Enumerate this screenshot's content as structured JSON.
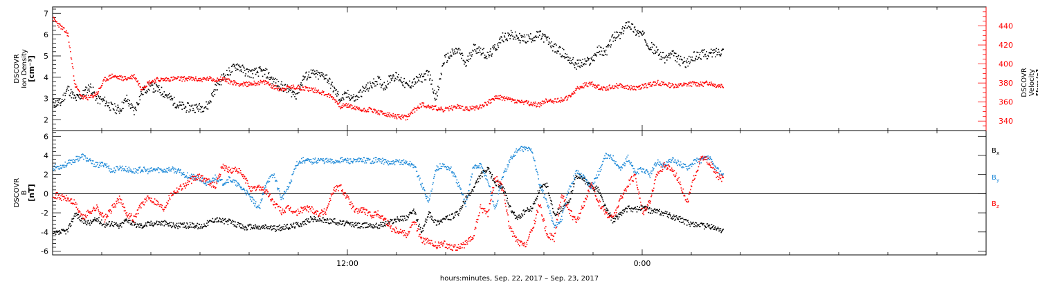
{
  "chart_data": [
    {
      "type": "scatter",
      "panel": "top",
      "ylabel_left": [
        "DSCOVR",
        "Ion Density",
        "[cm⁻³]"
      ],
      "ylabel_right": [
        "DSCOVR",
        "Velocity",
        "[km/s]"
      ],
      "left_axis": {
        "ylim": [
          1.5,
          7.3
        ],
        "ticks": [
          "2",
          "3",
          "4",
          "5",
          "6",
          "7"
        ],
        "tick_values": [
          2,
          3,
          4,
          5,
          6,
          7
        ]
      },
      "right_axis": {
        "ylim": [
          330,
          460
        ],
        "ticks": [
          "340",
          "360",
          "380",
          "400",
          "420",
          "440"
        ],
        "tick_values": [
          340,
          360,
          380,
          400,
          420,
          440
        ]
      },
      "series": [
        {
          "axis": "left",
          "color": "#000000",
          "x": [
            0.0,
            0.3,
            0.6,
            0.9,
            1.2,
            1.5,
            1.8,
            2.1,
            2.4,
            2.7,
            3.0,
            3.3,
            3.6,
            3.9,
            4.2,
            4.5,
            4.8,
            5.1,
            5.4,
            5.7,
            6.0,
            6.3,
            6.6,
            6.9,
            7.2,
            7.5,
            7.8,
            8.1,
            8.4,
            8.7,
            9.0,
            9.3,
            9.6,
            9.9,
            10.2,
            10.5,
            10.8,
            11.1,
            11.4,
            11.7,
            12.0,
            12.3,
            12.6,
            12.9,
            13.2,
            13.5,
            13.8,
            14.1,
            14.4,
            14.7,
            15.0,
            15.3,
            15.6,
            15.9,
            16.2,
            16.5,
            16.8,
            17.1,
            17.4,
            17.7,
            18.0,
            18.3,
            18.6,
            18.9,
            19.2,
            19.5,
            19.8,
            20.1,
            20.4,
            20.7,
            21.0,
            21.3,
            21.6,
            21.9,
            22.2,
            22.5,
            22.8,
            23.1,
            23.4,
            23.7,
            24.0,
            24.3,
            24.6,
            24.9,
            25.2,
            25.5,
            25.8,
            26.1,
            26.4,
            26.7,
            27.0,
            27.3
          ],
          "y": [
            2.8,
            2.8,
            3.5,
            3.0,
            3.2,
            3.6,
            3.0,
            2.9,
            2.6,
            2.5,
            3.0,
            2.4,
            3.3,
            3.6,
            3.5,
            3.3,
            3.0,
            2.7,
            2.6,
            2.6,
            2.6,
            2.7,
            3.5,
            4.0,
            4.3,
            4.6,
            4.3,
            4.2,
            4.3,
            4.2,
            3.8,
            3.6,
            3.4,
            3.2,
            4.0,
            4.2,
            4.1,
            4.1,
            3.5,
            3.0,
            3.2,
            3.0,
            3.4,
            3.6,
            3.9,
            3.6,
            4.1,
            4.0,
            3.6,
            3.8,
            4.0,
            4.2,
            3.0,
            4.8,
            5.1,
            5.3,
            4.6,
            5.4,
            5.3,
            5.0,
            5.4,
            5.9,
            6.0,
            5.9,
            5.8,
            5.9,
            6.0,
            5.8,
            5.4,
            5.2,
            4.9,
            4.6,
            4.7,
            4.8,
            5.3,
            5.2,
            5.9,
            6.0,
            6.6,
            6.2,
            6.0,
            5.5,
            5.2,
            4.9,
            5.1,
            4.8,
            4.7,
            5.0,
            5.1,
            5.1,
            5.2,
            5.3
          ]
        },
        {
          "axis": "right",
          "color": "#ff0000",
          "x": [
            0.0,
            0.3,
            0.6,
            0.9,
            1.2,
            1.5,
            1.8,
            2.1,
            2.4,
            2.7,
            3.0,
            3.3,
            3.6,
            3.9,
            4.2,
            4.5,
            4.8,
            5.1,
            5.4,
            5.7,
            6.0,
            6.3,
            6.6,
            6.9,
            7.2,
            7.5,
            7.8,
            8.1,
            8.4,
            8.7,
            9.0,
            9.3,
            9.6,
            9.9,
            10.2,
            10.5,
            10.8,
            11.1,
            11.4,
            11.7,
            12.0,
            12.3,
            12.6,
            12.9,
            13.2,
            13.5,
            13.8,
            14.1,
            14.4,
            14.7,
            15.0,
            15.3,
            15.6,
            15.9,
            16.2,
            16.5,
            16.8,
            17.1,
            17.4,
            17.7,
            18.0,
            18.3,
            18.6,
            18.9,
            19.2,
            19.5,
            19.8,
            20.1,
            20.4,
            20.7,
            21.0,
            21.3,
            21.6,
            21.9,
            22.2,
            22.5,
            22.8,
            23.1,
            23.4,
            23.7,
            24.0,
            24.3,
            24.6,
            24.9,
            25.2,
            25.5,
            25.8,
            26.1,
            26.4,
            26.7,
            27.0,
            27.3
          ],
          "y": [
            448,
            440,
            432,
            378,
            365,
            365,
            370,
            384,
            388,
            386,
            385,
            388,
            375,
            381,
            384,
            384,
            385,
            385,
            385,
            385,
            384,
            385,
            384,
            385,
            382,
            380,
            379,
            380,
            381,
            381,
            376,
            374,
            376,
            376,
            375,
            374,
            372,
            369,
            365,
            356,
            357,
            354,
            352,
            353,
            350,
            348,
            346,
            345,
            344,
            352,
            358,
            356,
            354,
            352,
            354,
            356,
            353,
            354,
            356,
            360,
            365,
            365,
            363,
            361,
            360,
            358,
            358,
            362,
            362,
            363,
            365,
            374,
            378,
            380,
            376,
            375,
            377,
            378,
            376,
            375,
            377,
            379,
            381,
            379,
            378,
            378,
            379,
            380,
            379,
            381,
            378,
            378
          ]
        }
      ]
    },
    {
      "type": "scatter",
      "panel": "bottom",
      "ylabel_left": [
        "DSCOVR",
        "B",
        "[nT]"
      ],
      "left_axis": {
        "ylim": [
          -6.4,
          6.6
        ],
        "ticks": [
          "-6",
          "-4",
          "-2",
          "0",
          "2",
          "4",
          "6"
        ],
        "tick_values": [
          -6,
          -4,
          -2,
          0,
          2,
          4,
          6
        ]
      },
      "zero_line": true,
      "series": [
        {
          "name": "Bx",
          "color": "#000000",
          "x": [
            0.0,
            0.3,
            0.6,
            0.9,
            1.2,
            1.5,
            1.8,
            2.1,
            2.4,
            2.7,
            3.0,
            3.3,
            3.6,
            3.9,
            4.2,
            4.5,
            4.8,
            5.1,
            5.4,
            5.7,
            6.0,
            6.3,
            6.6,
            6.9,
            7.2,
            7.5,
            7.8,
            8.1,
            8.4,
            8.7,
            9.0,
            9.3,
            9.6,
            9.9,
            10.2,
            10.5,
            10.8,
            11.1,
            11.4,
            11.7,
            12.0,
            12.3,
            12.6,
            12.9,
            13.2,
            13.5,
            13.8,
            14.1,
            14.4,
            14.7,
            15.0,
            15.3,
            15.6,
            15.9,
            16.2,
            16.5,
            16.8,
            17.1,
            17.4,
            17.7,
            18.0,
            18.3,
            18.6,
            18.9,
            19.2,
            19.5,
            19.8,
            20.1,
            20.4,
            20.7,
            21.0,
            21.3,
            21.6,
            21.9,
            22.2,
            22.5,
            22.8,
            23.1,
            23.4,
            23.7,
            24.0,
            24.3,
            24.6,
            24.9,
            25.2,
            25.5,
            25.8,
            26.1,
            26.4,
            26.7,
            27.0,
            27.3
          ],
          "y": [
            -4.2,
            -4.0,
            -3.8,
            -2.0,
            -2.8,
            -3.0,
            -2.6,
            -3.2,
            -3.0,
            -3.4,
            -2.6,
            -3.2,
            -3.3,
            -3.1,
            -3.0,
            -3.0,
            -3.2,
            -3.3,
            -3.3,
            -3.2,
            -3.4,
            -3.0,
            -2.6,
            -2.8,
            -2.9,
            -3.2,
            -3.5,
            -3.4,
            -3.5,
            -3.4,
            -3.6,
            -3.5,
            -3.4,
            -3.2,
            -3.0,
            -2.6,
            -2.6,
            -2.8,
            -2.8,
            -3.0,
            -3.1,
            -3.2,
            -3.3,
            -3.2,
            -3.3,
            -3.1,
            -2.8,
            -2.6,
            -2.4,
            -1.8,
            -4.0,
            -2.0,
            -3.0,
            -2.6,
            -2.4,
            -2.0,
            -0.5,
            0.5,
            2.0,
            2.6,
            1.2,
            0.8,
            -1.5,
            -2.6,
            -1.8,
            -1.5,
            0.5,
            1.0,
            -2.0,
            -1.6,
            -0.8,
            2.0,
            1.5,
            0.8,
            0.5,
            -1.5,
            -2.8,
            -2.0,
            -1.5,
            -1.6,
            -1.4,
            -1.7,
            -1.8,
            -2.0,
            -2.4,
            -2.6,
            -3.0,
            -3.1,
            -3.3,
            -3.4,
            -3.6,
            -3.8
          ]
        },
        {
          "name": "By",
          "color": "#1f8ad8",
          "x": [
            0.0,
            0.3,
            0.6,
            0.9,
            1.2,
            1.5,
            1.8,
            2.1,
            2.4,
            2.7,
            3.0,
            3.3,
            3.6,
            3.9,
            4.2,
            4.5,
            4.8,
            5.1,
            5.4,
            5.7,
            6.0,
            6.3,
            6.6,
            6.9,
            7.2,
            7.5,
            7.8,
            8.1,
            8.4,
            8.7,
            9.0,
            9.3,
            9.6,
            9.9,
            10.2,
            10.5,
            10.8,
            11.1,
            11.4,
            11.7,
            12.0,
            12.3,
            12.6,
            12.9,
            13.2,
            13.5,
            13.8,
            14.1,
            14.4,
            14.7,
            15.0,
            15.3,
            15.6,
            15.9,
            16.2,
            16.5,
            16.8,
            17.1,
            17.4,
            17.7,
            18.0,
            18.3,
            18.6,
            18.9,
            19.2,
            19.5,
            19.8,
            20.1,
            20.4,
            20.7,
            21.0,
            21.3,
            21.6,
            21.9,
            22.2,
            22.5,
            22.8,
            23.1,
            23.4,
            23.7,
            24.0,
            24.3,
            24.6,
            24.9,
            25.2,
            25.5,
            25.8,
            26.1,
            26.4,
            26.7,
            27.0,
            27.3
          ],
          "y": [
            2.8,
            2.9,
            3.2,
            3.6,
            4.0,
            3.4,
            3.0,
            3.2,
            2.4,
            2.8,
            2.6,
            2.4,
            2.6,
            2.4,
            2.6,
            2.5,
            2.6,
            2.4,
            2.0,
            1.8,
            1.6,
            1.0,
            1.8,
            1.2,
            1.6,
            1.0,
            0.4,
            -0.6,
            -1.5,
            1.4,
            2.0,
            -0.5,
            0.8,
            3.2,
            3.6,
            3.4,
            3.6,
            3.5,
            3.4,
            3.6,
            3.5,
            3.4,
            3.6,
            3.5,
            3.6,
            3.4,
            3.2,
            3.4,
            3.3,
            3.0,
            1.0,
            -0.8,
            2.8,
            3.0,
            2.6,
            1.0,
            -1.0,
            2.8,
            3.0,
            1.4,
            -1.6,
            1.8,
            3.6,
            4.6,
            4.8,
            4.6,
            1.0,
            -0.8,
            -3.4,
            -2.6,
            0.5,
            2.4,
            1.8,
            0.8,
            2.2,
            4.0,
            3.8,
            2.6,
            3.8,
            2.2,
            2.6,
            2.0,
            3.4,
            3.0,
            3.6,
            3.2,
            2.8,
            3.4,
            3.6,
            3.8,
            2.6,
            2.0
          ]
        },
        {
          "name": "Bz",
          "color": "#ff0000",
          "x": [
            0.0,
            0.3,
            0.6,
            0.9,
            1.2,
            1.5,
            1.8,
            2.1,
            2.4,
            2.7,
            3.0,
            3.3,
            3.6,
            3.9,
            4.2,
            4.5,
            4.8,
            5.1,
            5.4,
            5.7,
            6.0,
            6.3,
            6.6,
            6.9,
            7.2,
            7.5,
            7.8,
            8.1,
            8.4,
            8.7,
            9.0,
            9.3,
            9.6,
            9.9,
            10.2,
            10.5,
            10.8,
            11.1,
            11.4,
            11.7,
            12.0,
            12.3,
            12.6,
            12.9,
            13.2,
            13.5,
            13.8,
            14.1,
            14.4,
            14.7,
            15.0,
            15.3,
            15.6,
            15.9,
            16.2,
            16.5,
            16.8,
            17.1,
            17.4,
            17.7,
            18.0,
            18.3,
            18.6,
            18.9,
            19.2,
            19.5,
            19.8,
            20.1,
            20.4,
            20.7,
            21.0,
            21.3,
            21.6,
            21.9,
            22.2,
            22.5,
            22.8,
            23.1,
            23.4,
            23.7,
            24.0,
            24.3,
            24.6,
            24.9,
            25.2,
            25.5,
            25.8,
            26.1,
            26.4,
            26.7,
            27.0,
            27.3
          ],
          "y": [
            0.0,
            -0.3,
            -0.5,
            -1.0,
            -2.5,
            -1.8,
            -1.4,
            -2.6,
            -1.5,
            -0.5,
            -2.0,
            -2.6,
            -1.0,
            -0.4,
            -0.8,
            -1.5,
            0.0,
            0.6,
            1.0,
            1.6,
            1.8,
            1.4,
            0.8,
            3.0,
            2.4,
            2.6,
            1.6,
            0.4,
            0.8,
            0.2,
            -1.0,
            -1.8,
            -1.5,
            -2.0,
            -1.5,
            -1.5,
            -2.0,
            -1.8,
            0.4,
            0.8,
            -0.5,
            -1.8,
            -1.6,
            -2.2,
            -2.0,
            -2.6,
            -3.6,
            -3.8,
            -4.2,
            -2.8,
            -4.8,
            -5.0,
            -5.4,
            -5.2,
            -5.5,
            -5.6,
            -5.2,
            -4.5,
            -1.4,
            -2.0,
            1.8,
            0.6,
            -3.6,
            -5.0,
            -5.4,
            -3.8,
            -1.0,
            -4.2,
            -4.6,
            0.0,
            -1.6,
            -3.0,
            -1.0,
            1.0,
            -0.8,
            -2.0,
            -2.5,
            -0.5,
            1.0,
            2.0,
            -2.0,
            -0.6,
            2.2,
            3.0,
            2.6,
            1.4,
            -1.0,
            1.8,
            3.8,
            3.4,
            2.0,
            1.5
          ]
        }
      ],
      "legend": [
        "Bₓ",
        "Bᵧ",
        "B_z"
      ]
    }
  ],
  "x_axis": {
    "tick_labels": [
      "12:00",
      "0:00"
    ],
    "tick_hours": [
      12,
      24
    ],
    "xlim_hours": [
      0,
      38
    ],
    "xlabel": "hours:minutes, Sep. 22, 2017 – Sep. 23, 2017"
  },
  "legend_labels": {
    "bx": "B",
    "bx_sub": "x",
    "by": "B",
    "by_sub": "y",
    "bz": "B",
    "bz_sub": "z"
  },
  "colors": {
    "density": "#000000",
    "velocity": "#ff0000",
    "bx": "#000000",
    "by": "#1f8ad8",
    "bz": "#ff0000",
    "axis": "#000000"
  }
}
